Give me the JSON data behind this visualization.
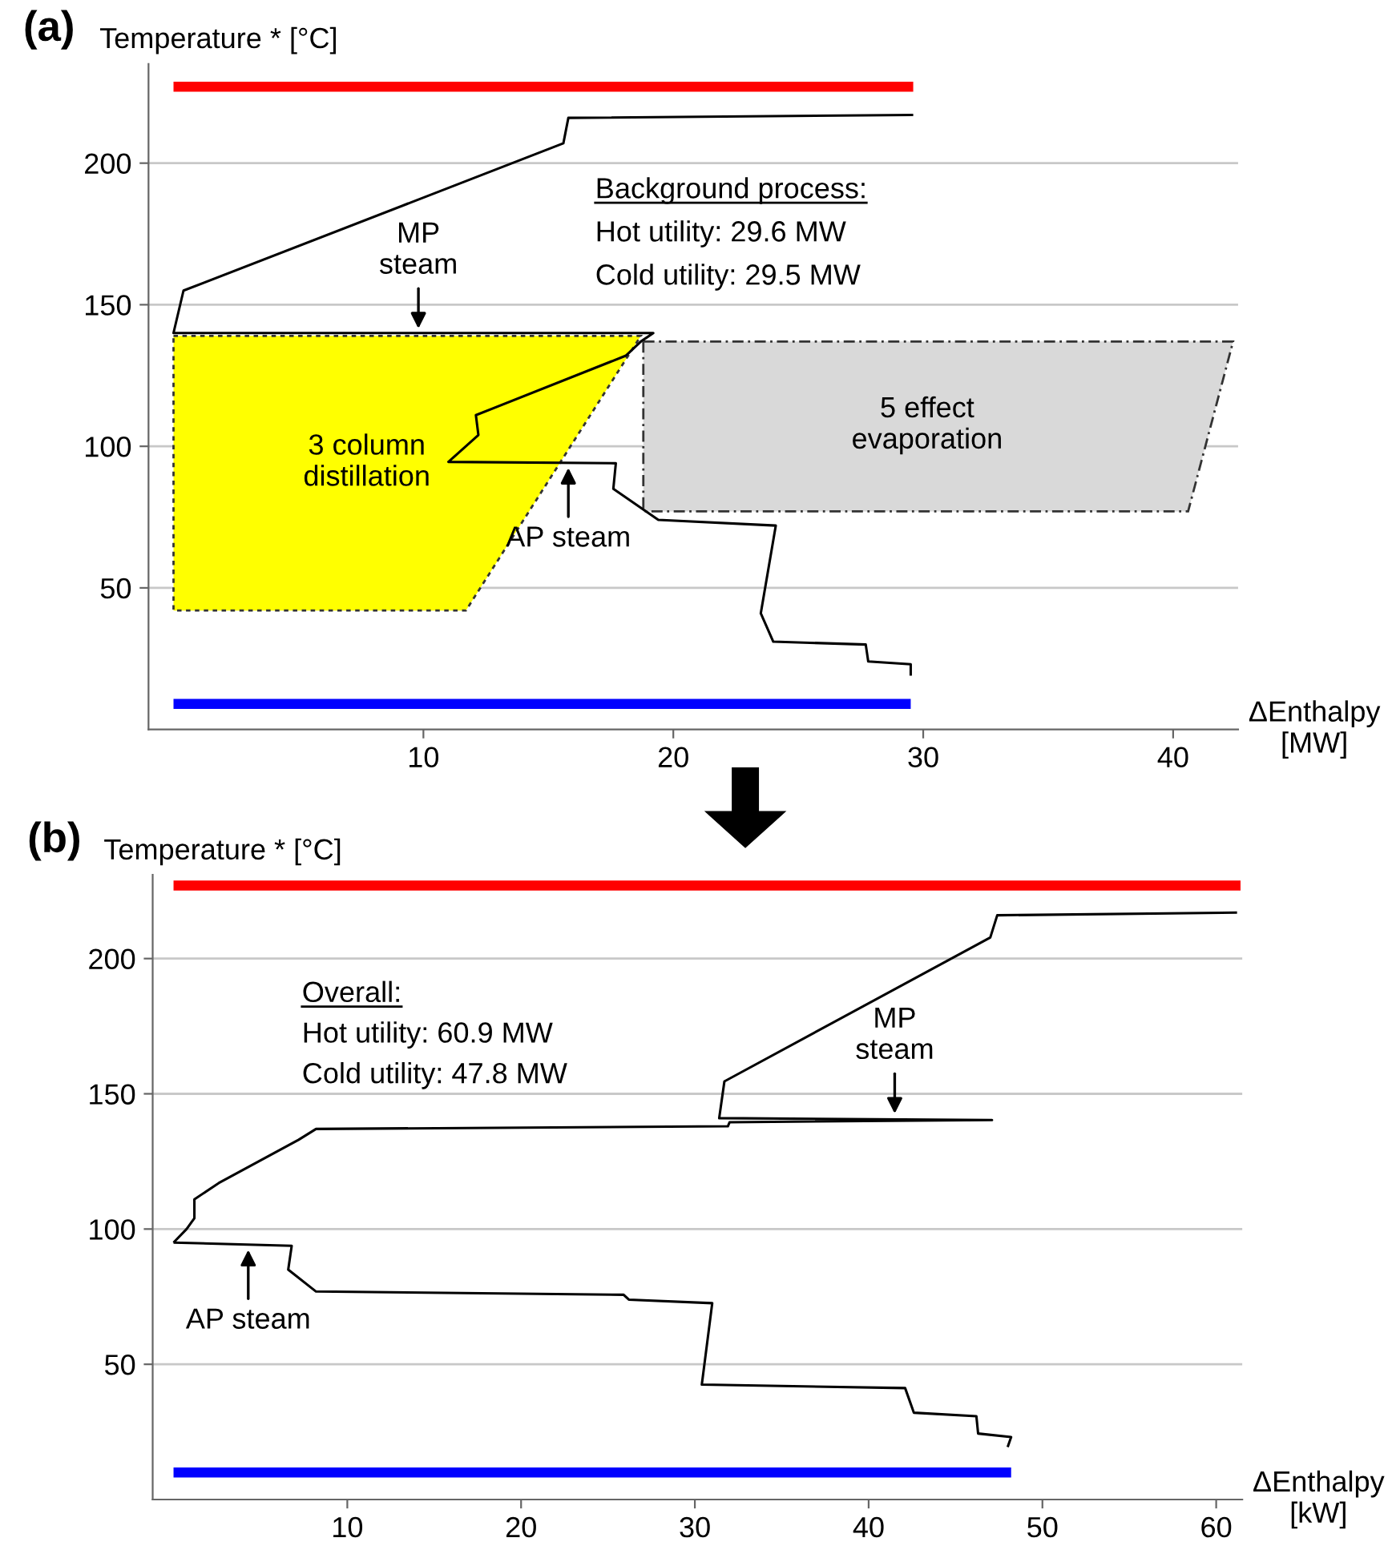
{
  "chart_data": [
    {
      "type": "line",
      "title": "(a)",
      "ylabel": "Temperature * [°C]",
      "xlabel": "ΔEnthalpy\n[MW]",
      "xlim": [
        -1,
        42.6
      ],
      "ylim": [
        0,
        235
      ],
      "xticks": [
        10,
        20,
        30,
        40
      ],
      "yticks": [
        50,
        100,
        150,
        200
      ],
      "grid": "y",
      "series": [
        {
          "type": "area",
          "name": "3 column\ndistillation",
          "color": "#ffff00",
          "line_style": "dotted",
          "x": [
            0,
            18.7,
            11.7,
            0,
            0
          ],
          "values": [
            139,
            139,
            42,
            42,
            139
          ]
        },
        {
          "type": "area",
          "name": "5 effect\nevaporation",
          "color": "#d9d9d9",
          "line_style": "dashed",
          "x": [
            18.8,
            42.4,
            40.6,
            18.8,
            18.8
          ],
          "values": [
            137,
            137,
            77,
            77,
            137
          ]
        },
        {
          "type": "line",
          "color": "#ff0000",
          "x": [
            0,
            29.6
          ],
          "values": [
            227,
            227
          ]
        },
        {
          "type": "line",
          "color": "#0000ff",
          "x": [
            0,
            29.5
          ],
          "values": [
            9,
            9
          ]
        },
        {
          "type": "line",
          "color": "#000000",
          "x": [
            29.6,
            15.8,
            15.6,
            0.4,
            0,
            19.2,
            18.7,
            18.1,
            12.1,
            12.2,
            11.0,
            17.7,
            17.6,
            19.4,
            24.1,
            23.5,
            24.0,
            27.7,
            27.8,
            29.5,
            29.5
          ],
          "values": [
            217,
            216,
            207,
            155,
            140,
            140,
            137,
            132,
            111,
            104,
            94.5,
            94,
            85,
            74,
            72,
            41,
            31,
            30,
            24,
            23,
            19
          ]
        }
      ],
      "annotations": [
        "Background process:",
        "Hot utility: 29.6 MW",
        "Cold utility: 29.5 MW",
        {
          "text": "MP\nsteam",
          "x": 9.8,
          "y": 140
        },
        {
          "text": "AP steam",
          "x": 15.8,
          "y": 94
        }
      ]
    },
    {
      "type": "line",
      "title": "(b)",
      "ylabel": "Temperature * [°C]",
      "xlabel": "ΔEnthalpy\n[kW]",
      "xlim": [
        -1.2,
        61.5
      ],
      "ylim": [
        0,
        231
      ],
      "xticks": [
        10,
        20,
        30,
        40,
        50,
        60
      ],
      "yticks": [
        50,
        100,
        150,
        200
      ],
      "grid": "y",
      "series": [
        {
          "type": "line",
          "color": "#ff0000",
          "x": [
            0,
            61.4
          ],
          "values": [
            227,
            227
          ]
        },
        {
          "type": "line",
          "color": "#0000ff",
          "x": [
            0,
            48.2
          ],
          "values": [
            10,
            10
          ]
        },
        {
          "type": "line",
          "color": "#000000",
          "x": [
            0,
            0.75,
            1.2,
            1.2,
            2.6,
            7.2,
            8.2,
            31.9,
            32.0,
            47.1,
            31.4,
            31.7,
            47.0,
            47.4,
            61.2
          ],
          "values": [
            95,
            100,
            104,
            111,
            117,
            133,
            137,
            138,
            139.5,
            140.3,
            141,
            154.6,
            207.8,
            216,
            217
          ]
        },
        {
          "type": "line",
          "color": "#000000",
          "x": [
            0,
            6.8,
            6.6,
            8.2,
            25.9,
            26.2,
            31.0,
            30.4,
            42.1,
            42.6,
            46.2,
            46.3,
            48.2,
            48.0
          ],
          "values": [
            95,
            93.8,
            85,
            76.9,
            75.7,
            73.9,
            72.6,
            42.5,
            41.2,
            32.1,
            30.8,
            24.4,
            23.1,
            19.4
          ]
        }
      ],
      "annotations": [
        "Overall:",
        "Hot utility: 60.9 MW",
        "Cold utility: 47.8 MW",
        {
          "text": "MP\nsteam",
          "x": 41.5,
          "y": 141
        },
        {
          "text": "AP steam",
          "x": 4.3,
          "y": 94
        }
      ]
    }
  ]
}
